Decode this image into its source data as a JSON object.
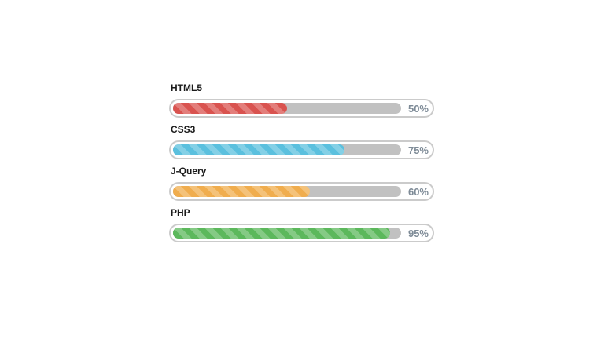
{
  "widget": {
    "name": "skills-progress-bars",
    "background": "#ffffff"
  },
  "colors": {
    "track": "#c1c1c1",
    "outer_border": "#cbcbcb",
    "pill_background": "#ffffff",
    "label_text": "#1b1b1b",
    "percent_text": "#7e8b97"
  },
  "skills": [
    {
      "name": "HTML5",
      "percent": 50,
      "percent_label": "50%",
      "color": "#d9534f"
    },
    {
      "name": "CSS3",
      "percent": 75,
      "percent_label": "75%",
      "color": "#5bc0de"
    },
    {
      "name": "J-Query",
      "percent": 60,
      "percent_label": "60%",
      "color": "#f0ad4e"
    },
    {
      "name": "PHP",
      "percent": 95,
      "percent_label": "95%",
      "color": "#5cb85c"
    }
  ],
  "chart_data": {
    "type": "bar",
    "orientation": "horizontal",
    "categories": [
      "HTML5",
      "CSS3",
      "J-Query",
      "PHP"
    ],
    "values": [
      50,
      75,
      60,
      95
    ],
    "value_labels": [
      "50%",
      "75%",
      "60%",
      "95%"
    ],
    "series_colors": [
      "#d9534f",
      "#5bc0de",
      "#f0ad4e",
      "#5cb85c"
    ],
    "xlim": [
      0,
      100
    ],
    "title": "",
    "xlabel": "",
    "ylabel": "",
    "grid": false,
    "legend": false,
    "style": "striped-pill-progress-bars"
  }
}
